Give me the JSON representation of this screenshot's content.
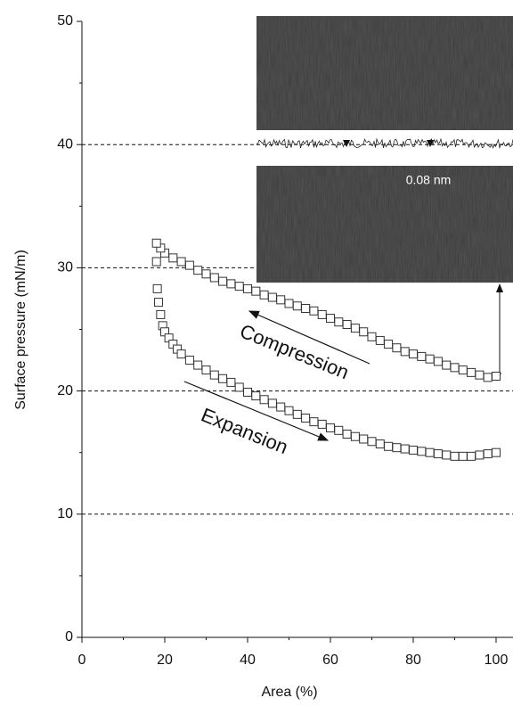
{
  "chart_data": {
    "type": "scatter",
    "x_label": "Area (%)",
    "y_label": "Surface pressure (mN/m)",
    "xlim": [
      0,
      100
    ],
    "ylim": [
      0,
      50
    ],
    "xticks": [
      0,
      20,
      40,
      60,
      80,
      100
    ],
    "yticks": [
      0,
      10,
      20,
      30,
      40,
      50
    ],
    "grid": true,
    "marker": "square",
    "color": "#333333",
    "annotations": [
      "Compression",
      "Expansion",
      "0.08 nm"
    ],
    "series": [
      {
        "x": [
          100,
          98,
          96,
          94,
          92,
          90,
          88,
          86,
          84,
          82,
          80,
          78,
          76,
          74,
          72,
          70,
          68,
          66,
          64,
          62,
          60,
          58,
          56,
          54,
          52,
          50,
          48,
          46,
          44,
          42,
          40,
          38,
          36,
          34,
          32,
          30,
          28,
          26,
          24,
          22,
          20,
          19,
          18
        ],
        "values": [
          21.2,
          21.1,
          21.3,
          21.5,
          21.7,
          21.9,
          22.1,
          22.4,
          22.6,
          22.8,
          23.0,
          23.2,
          23.5,
          23.8,
          24.1,
          24.4,
          24.8,
          25.1,
          25.4,
          25.6,
          25.9,
          26.2,
          26.5,
          26.7,
          26.9,
          27.1,
          27.4,
          27.6,
          27.8,
          28.1,
          28.3,
          28.5,
          28.7,
          28.9,
          29.2,
          29.5,
          29.8,
          30.2,
          30.5,
          30.8,
          31.2,
          31.6,
          32.0
        ]
      },
      {
        "x": [
          18,
          18.2,
          18.5,
          19,
          19.5,
          20,
          21,
          22,
          23,
          24,
          26,
          28,
          30,
          32,
          34,
          36,
          38,
          40,
          42,
          44,
          46,
          48,
          50,
          52,
          54,
          56,
          58,
          60,
          62,
          64,
          66,
          68,
          70,
          72,
          74,
          76,
          78,
          80,
          82,
          84,
          86,
          88,
          90,
          92,
          94,
          96,
          98,
          100
        ],
        "values": [
          30.5,
          28.3,
          27.2,
          26.2,
          25.3,
          24.8,
          24.3,
          23.8,
          23.4,
          23.0,
          22.5,
          22.1,
          21.7,
          21.3,
          21.0,
          20.7,
          20.3,
          19.9,
          19.6,
          19.3,
          19.0,
          18.7,
          18.4,
          18.1,
          17.8,
          17.5,
          17.3,
          17.0,
          16.8,
          16.5,
          16.3,
          16.1,
          15.9,
          15.7,
          15.5,
          15.4,
          15.3,
          15.2,
          15.1,
          15.0,
          14.9,
          14.8,
          14.7,
          14.7,
          14.7,
          14.8,
          14.9,
          15.0
        ]
      }
    ]
  }
}
